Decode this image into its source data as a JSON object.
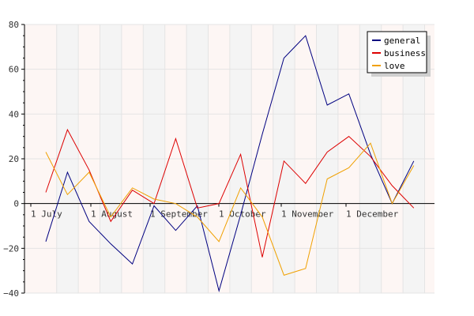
{
  "chart_data": {
    "type": "line",
    "title": "",
    "xlabel": "",
    "ylabel": "",
    "ylim": [
      -40,
      80
    ],
    "yticks": [
      -40,
      -20,
      0,
      20,
      40,
      60,
      80
    ],
    "y_tick_labels": [
      "−40",
      "−20",
      "0",
      "20",
      "40",
      "60",
      "80"
    ],
    "x_tick_labels": [
      "1 July",
      "1 August",
      "1 September",
      "1 October",
      "1 November",
      "1 December"
    ],
    "grid": true,
    "legend_position": "top-right",
    "x": [
      0,
      1,
      2,
      3,
      4,
      5,
      6,
      7,
      8,
      9,
      10,
      11,
      12,
      13,
      14,
      15,
      16,
      17
    ],
    "series": [
      {
        "name": "general",
        "color": "#000080",
        "values": [
          -17,
          14,
          -8,
          -18,
          -27,
          -1,
          -12,
          -1,
          -39,
          -5,
          31,
          65,
          75,
          44,
          49,
          22,
          0,
          19
        ]
      },
      {
        "name": "business",
        "color": "#dd0000",
        "values": [
          5,
          33,
          15,
          -8,
          6,
          0,
          29,
          -2,
          0,
          22,
          -24,
          19,
          9,
          23,
          30,
          21,
          8,
          -2
        ]
      },
      {
        "name": "love",
        "color": "#f0a000",
        "values": [
          23,
          4,
          14,
          -6,
          7,
          2,
          0,
          -6,
          -17,
          7,
          -6,
          -32,
          -29,
          11,
          16,
          27,
          0,
          17
        ]
      }
    ]
  }
}
